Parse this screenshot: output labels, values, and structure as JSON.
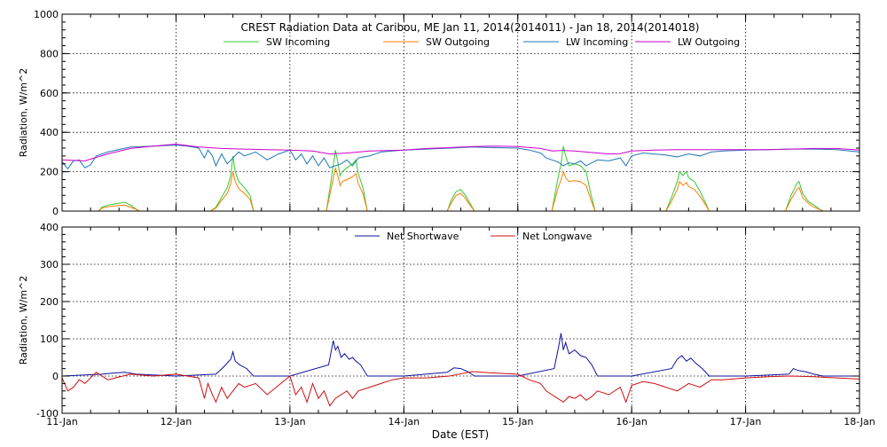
{
  "chart_data": [
    {
      "type": "line",
      "title": "CREST Radiation Data at Caribou, ME   Jan 11, 2014(2014011) - Jan 18, 2014(2014018)",
      "ylabel": "Radiation, W/m^2",
      "xlabel": "",
      "x_unit": "day of January 2014",
      "xlim": [
        11,
        18
      ],
      "ylim": [
        0,
        1000
      ],
      "yticks": [
        0,
        200,
        400,
        600,
        800,
        1000
      ],
      "grid": true,
      "legend_position": "top",
      "series": [
        {
          "name": "SW Incoming",
          "color": "#33cc33",
          "x": [
            11.0,
            11.32,
            11.35,
            11.4,
            11.45,
            11.5,
            11.55,
            11.6,
            11.65,
            11.68,
            12.0,
            12.3,
            12.35,
            12.4,
            12.45,
            12.48,
            12.5,
            12.52,
            12.55,
            12.6,
            12.65,
            12.68,
            13.0,
            13.32,
            13.36,
            13.4,
            13.42,
            13.44,
            13.46,
            13.5,
            13.55,
            13.58,
            13.6,
            13.64,
            13.68,
            14.0,
            14.38,
            14.42,
            14.46,
            14.5,
            14.54,
            14.58,
            14.62,
            15.0,
            15.3,
            15.35,
            15.38,
            15.4,
            15.42,
            15.45,
            15.5,
            15.55,
            15.6,
            15.64,
            15.68,
            16.0,
            16.3,
            16.35,
            16.4,
            16.42,
            16.45,
            16.48,
            16.5,
            16.55,
            16.6,
            16.65,
            16.68,
            17.0,
            17.35,
            17.4,
            17.45,
            17.47,
            17.5,
            17.55,
            17.6,
            17.65,
            17.68,
            18.0
          ],
          "y": [
            0,
            0,
            20,
            30,
            35,
            40,
            45,
            30,
            10,
            0,
            0,
            0,
            20,
            70,
            120,
            180,
            280,
            200,
            150,
            120,
            80,
            0,
            0,
            0,
            150,
            310,
            250,
            180,
            200,
            220,
            240,
            260,
            190,
            120,
            0,
            0,
            0,
            60,
            100,
            110,
            80,
            40,
            0,
            0,
            0,
            160,
            240,
            330,
            280,
            230,
            240,
            230,
            200,
            90,
            0,
            0,
            0,
            70,
            150,
            200,
            180,
            200,
            170,
            150,
            100,
            40,
            0,
            0,
            0,
            80,
            140,
            150,
            90,
            50,
            30,
            10,
            0,
            0
          ]
        },
        {
          "name": "SW Outgoing",
          "color": "#ff7f00",
          "x": [
            11.0,
            11.32,
            11.35,
            11.4,
            11.45,
            11.5,
            11.55,
            11.6,
            11.65,
            11.68,
            12.0,
            12.3,
            12.35,
            12.4,
            12.45,
            12.48,
            12.5,
            12.52,
            12.55,
            12.6,
            12.65,
            12.68,
            13.0,
            13.32,
            13.36,
            13.4,
            13.42,
            13.44,
            13.46,
            13.5,
            13.55,
            13.58,
            13.6,
            13.64,
            13.68,
            14.0,
            14.38,
            14.42,
            14.46,
            14.5,
            14.54,
            14.58,
            14.62,
            15.0,
            15.3,
            15.35,
            15.38,
            15.4,
            15.42,
            15.45,
            15.5,
            15.55,
            15.6,
            15.64,
            15.68,
            16.0,
            16.3,
            16.35,
            16.4,
            16.42,
            16.45,
            16.48,
            16.5,
            16.55,
            16.6,
            16.65,
            16.68,
            17.0,
            17.35,
            17.4,
            17.45,
            17.47,
            17.5,
            17.55,
            17.6,
            17.65,
            17.68,
            18.0
          ],
          "y": [
            0,
            0,
            15,
            22,
            25,
            28,
            30,
            20,
            8,
            0,
            0,
            0,
            15,
            55,
            90,
            140,
            200,
            150,
            115,
            90,
            60,
            0,
            0,
            0,
            110,
            220,
            180,
            130,
            150,
            160,
            175,
            190,
            140,
            90,
            0,
            0,
            0,
            45,
            80,
            90,
            65,
            30,
            0,
            0,
            0,
            110,
            160,
            200,
            170,
            150,
            155,
            150,
            130,
            60,
            0,
            0,
            0,
            50,
            110,
            150,
            130,
            145,
            125,
            110,
            75,
            30,
            0,
            0,
            0,
            60,
            110,
            120,
            70,
            40,
            20,
            8,
            0,
            0
          ]
        },
        {
          "name": "LW Incoming",
          "color": "#1f77b4",
          "x": [
            11.0,
            11.05,
            11.1,
            11.15,
            11.2,
            11.25,
            11.3,
            11.4,
            11.6,
            11.8,
            12.0,
            12.1,
            12.2,
            12.25,
            12.28,
            12.32,
            12.35,
            12.4,
            12.45,
            12.5,
            12.55,
            12.6,
            12.7,
            12.8,
            12.9,
            13.0,
            13.05,
            13.1,
            13.15,
            13.2,
            13.25,
            13.3,
            13.35,
            13.4,
            13.45,
            13.5,
            13.55,
            13.6,
            13.7,
            13.8,
            13.9,
            14.0,
            14.2,
            14.4,
            14.6,
            14.8,
            15.0,
            15.1,
            15.2,
            15.25,
            15.3,
            15.35,
            15.4,
            15.45,
            15.5,
            15.55,
            15.6,
            15.65,
            15.7,
            15.8,
            15.9,
            15.95,
            16.0,
            16.1,
            16.2,
            16.3,
            16.4,
            16.5,
            16.6,
            16.7,
            16.8,
            17.0,
            17.2,
            17.4,
            17.6,
            17.8,
            18.0
          ],
          "y": [
            250,
            215,
            255,
            260,
            220,
            235,
            280,
            300,
            325,
            330,
            335,
            330,
            320,
            270,
            310,
            280,
            230,
            290,
            240,
            270,
            300,
            280,
            300,
            260,
            290,
            310,
            260,
            290,
            240,
            280,
            230,
            270,
            220,
            230,
            240,
            260,
            230,
            270,
            280,
            300,
            305,
            310,
            315,
            320,
            325,
            322,
            320,
            310,
            295,
            270,
            260,
            250,
            230,
            245,
            240,
            255,
            230,
            245,
            260,
            255,
            270,
            230,
            280,
            295,
            290,
            285,
            275,
            290,
            280,
            300,
            305,
            310,
            312,
            315,
            315,
            312,
            300
          ]
        },
        {
          "name": "LW Outgoing",
          "color": "#cc00cc",
          "x": [
            11.0,
            11.2,
            11.4,
            11.6,
            11.8,
            12.0,
            12.2,
            12.4,
            12.6,
            12.8,
            13.0,
            13.2,
            13.35,
            13.5,
            13.7,
            14.0,
            14.2,
            14.4,
            14.6,
            14.8,
            15.0,
            15.2,
            15.3,
            15.4,
            15.5,
            15.6,
            15.7,
            15.8,
            15.9,
            16.0,
            16.2,
            16.4,
            16.6,
            16.8,
            17.0,
            17.2,
            17.4,
            17.6,
            17.8,
            18.0
          ],
          "y": [
            260,
            255,
            290,
            318,
            330,
            340,
            325,
            318,
            315,
            312,
            310,
            305,
            290,
            295,
            305,
            310,
            318,
            322,
            328,
            330,
            328,
            318,
            305,
            308,
            305,
            300,
            295,
            290,
            292,
            305,
            310,
            312,
            312,
            312,
            312,
            312,
            315,
            318,
            318,
            310
          ]
        }
      ]
    },
    {
      "type": "line",
      "title": "",
      "ylabel": "Radiation, W/m^2",
      "xlabel": "Date (EST)",
      "x_unit": "day of January 2014",
      "xlim": [
        11,
        18
      ],
      "ylim": [
        -100,
        400
      ],
      "yticks": [
        -100,
        0,
        100,
        200,
        300,
        400
      ],
      "xticks": [
        "11-Jan",
        "12-Jan",
        "13-Jan",
        "14-Jan",
        "15-Jan",
        "16-Jan",
        "17-Jan",
        "18-Jan"
      ],
      "grid": true,
      "legend_position": "top",
      "series": [
        {
          "name": "Net Shortwave",
          "color": "#1010a0",
          "x": [
            11.0,
            11.35,
            11.45,
            11.55,
            11.65,
            12.0,
            12.35,
            12.42,
            12.48,
            12.5,
            12.52,
            12.56,
            12.62,
            12.68,
            13.0,
            13.34,
            13.38,
            13.4,
            13.42,
            13.45,
            13.48,
            13.52,
            13.55,
            13.58,
            13.62,
            13.68,
            14.0,
            14.38,
            14.44,
            14.5,
            14.56,
            14.62,
            15.0,
            15.32,
            15.36,
            15.38,
            15.4,
            15.42,
            15.45,
            15.5,
            15.55,
            15.6,
            15.65,
            15.7,
            16.0,
            16.35,
            16.4,
            16.44,
            16.48,
            16.52,
            16.56,
            16.62,
            16.68,
            17.0,
            17.38,
            17.42,
            17.46,
            17.52,
            17.6,
            17.68,
            18.0
          ],
          "y": [
            0,
            5,
            8,
            10,
            5,
            0,
            5,
            25,
            45,
            65,
            40,
            30,
            20,
            0,
            0,
            30,
            95,
            70,
            80,
            50,
            60,
            45,
            50,
            40,
            30,
            0,
            0,
            10,
            22,
            20,
            12,
            0,
            0,
            20,
            80,
            115,
            70,
            90,
            60,
            70,
            55,
            50,
            30,
            0,
            0,
            20,
            45,
            55,
            40,
            48,
            35,
            20,
            0,
            0,
            5,
            20,
            15,
            12,
            5,
            0,
            0
          ]
        },
        {
          "name": "Net Longwave",
          "color": "#cc1010",
          "x": [
            11.0,
            11.05,
            11.1,
            11.15,
            11.2,
            11.3,
            11.4,
            11.6,
            11.8,
            12.0,
            12.1,
            12.2,
            12.25,
            12.28,
            12.32,
            12.35,
            12.4,
            12.45,
            12.5,
            12.55,
            12.6,
            12.7,
            12.8,
            12.9,
            13.0,
            13.05,
            13.1,
            13.15,
            13.2,
            13.25,
            13.3,
            13.35,
            13.4,
            13.45,
            13.5,
            13.55,
            13.6,
            13.7,
            13.8,
            13.9,
            14.0,
            14.2,
            14.4,
            14.6,
            14.8,
            15.0,
            15.1,
            15.2,
            15.25,
            15.3,
            15.35,
            15.4,
            15.45,
            15.5,
            15.55,
            15.6,
            15.65,
            15.7,
            15.8,
            15.9,
            15.95,
            16.0,
            16.1,
            16.2,
            16.3,
            16.4,
            16.5,
            16.6,
            16.7,
            16.8,
            17.0,
            17.2,
            17.4,
            17.6,
            17.8,
            18.0
          ],
          "y": [
            -5,
            -40,
            -30,
            -10,
            -20,
            10,
            -10,
            5,
            0,
            5,
            0,
            -5,
            -60,
            -20,
            -50,
            -70,
            -30,
            -60,
            -40,
            -20,
            -30,
            -20,
            -50,
            -25,
            0,
            -50,
            -30,
            -70,
            -20,
            -60,
            -40,
            -80,
            -60,
            -50,
            -40,
            -60,
            -40,
            -30,
            -20,
            -10,
            -5,
            -5,
            0,
            12,
            8,
            5,
            -10,
            -20,
            -40,
            -50,
            -60,
            -70,
            -55,
            -60,
            -50,
            -65,
            -55,
            -40,
            -50,
            -30,
            -70,
            -25,
            -15,
            -20,
            -30,
            -40,
            -20,
            -30,
            -10,
            -10,
            -5,
            -2,
            0,
            -2,
            -5,
            -8
          ]
        }
      ]
    }
  ]
}
